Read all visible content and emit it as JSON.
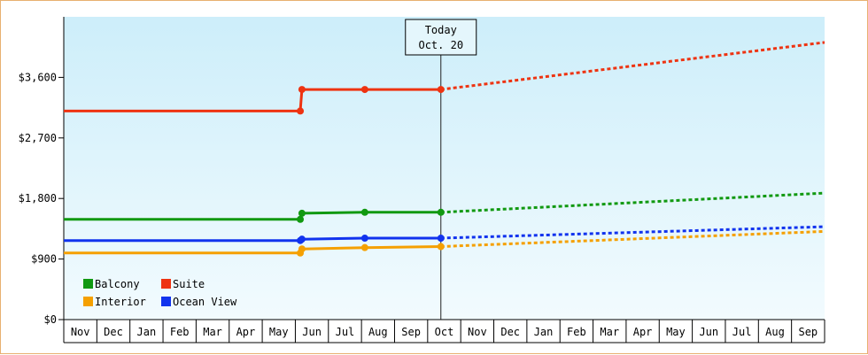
{
  "chart_data": {
    "type": "line",
    "title": "",
    "xlabel": "",
    "ylabel": "",
    "ylim": [
      0,
      4500
    ],
    "y_ticks": [
      0,
      900,
      1800,
      2700,
      3600
    ],
    "y_tick_labels": [
      "$0",
      "$900",
      "$1,800",
      "$2,700",
      "$3,600"
    ],
    "x_ticks": [
      "Nov",
      "Dec",
      "Jan",
      "Feb",
      "Mar",
      "Apr",
      "May",
      "Jun",
      "Jul",
      "Aug",
      "Sep",
      "Oct",
      "Nov",
      "Dec",
      "Jan",
      "Feb",
      "Mar",
      "Apr",
      "May",
      "Jun",
      "Jul",
      "Aug",
      "Sep"
    ],
    "today_marker": {
      "line1": "Today",
      "line2": "Oct. 20",
      "x": 11.4
    },
    "legend_position": "bottom-left",
    "series": [
      {
        "name": "Suite",
        "color": "#ee3311",
        "x": [
          0,
          7.15,
          7.2,
          9.1,
          11.4
        ],
        "y": [
          3100,
          3100,
          3420,
          3420,
          3420
        ],
        "forecast": {
          "x": [
            11.4,
            23
          ],
          "y": [
            3420,
            4120
          ]
        }
      },
      {
        "name": "Balcony",
        "color": "#119911",
        "x": [
          0,
          7.15,
          7.2,
          9.1,
          11.4
        ],
        "y": [
          1490,
          1490,
          1580,
          1595,
          1595
        ],
        "forecast": {
          "x": [
            11.4,
            23
          ],
          "y": [
            1595,
            1880
          ]
        }
      },
      {
        "name": "Ocean View",
        "color": "#1133ee",
        "x": [
          0,
          7.15,
          7.2,
          9.1,
          11.4
        ],
        "y": [
          1175,
          1175,
          1195,
          1210,
          1210
        ],
        "forecast": {
          "x": [
            11.4,
            23
          ],
          "y": [
            1210,
            1380
          ]
        }
      },
      {
        "name": "Interior",
        "color": "#f5a000",
        "x": [
          0,
          7.15,
          7.2,
          9.1,
          11.4
        ],
        "y": [
          990,
          990,
          1050,
          1070,
          1085
        ],
        "forecast": {
          "x": [
            11.4,
            23
          ],
          "y": [
            1085,
            1310
          ]
        }
      }
    ],
    "legend": [
      {
        "name": "Balcony",
        "color": "#119911"
      },
      {
        "name": "Suite",
        "color": "#ee3311"
      },
      {
        "name": "Interior",
        "color": "#f5a000"
      },
      {
        "name": "Ocean View",
        "color": "#1133ee"
      }
    ]
  }
}
